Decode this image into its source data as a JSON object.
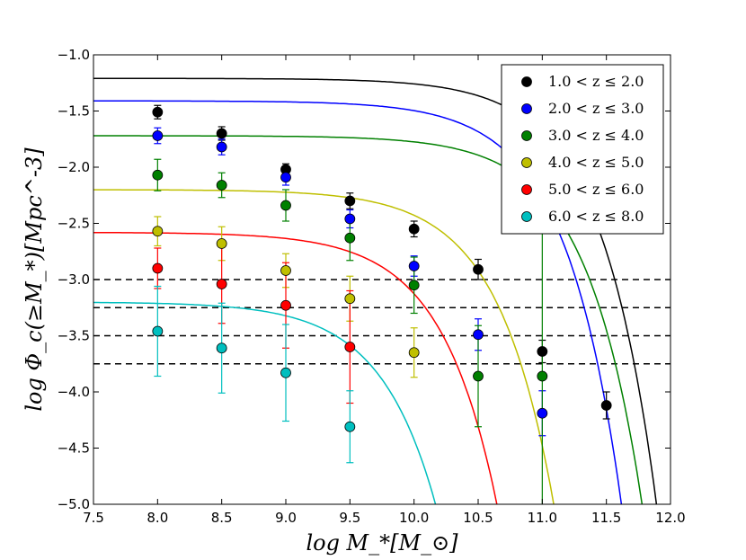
{
  "chart_data": {
    "type": "scatter",
    "title": "",
    "xlabel": "log M_*[M_⊙]",
    "ylabel": "log Φ_c(≥M_*)[Mpc^-3]",
    "xlim": [
      7.5,
      12.0
    ],
    "ylim": [
      -5.0,
      -1.0
    ],
    "x_ticks": [
      "7.5",
      "8.0",
      "8.5",
      "9.0",
      "9.5",
      "10.0",
      "10.5",
      "11.0",
      "11.5",
      "12.0"
    ],
    "y_ticks": [
      "−1.0",
      "−1.5",
      "−2.0",
      "−2.5",
      "−3.0",
      "−3.5",
      "−4.0",
      "−4.5",
      "−5.0"
    ],
    "legend_position": "top-right",
    "reference_lines": [
      -3.0,
      -3.25,
      -3.5,
      -3.75
    ],
    "series": [
      {
        "name": "1.0 < z ≤ 2.0",
        "color": "#000000",
        "x": [
          8.0,
          8.5,
          9.0,
          9.5,
          10.0,
          10.5,
          11.0,
          11.5
        ],
        "y": [
          -1.51,
          -1.7,
          -2.02,
          -2.3,
          -2.55,
          -2.91,
          -3.64,
          -4.12
        ],
        "err": [
          0.06,
          0.06,
          0.05,
          0.07,
          0.07,
          0.09,
          0.1,
          0.12
        ],
        "fit": {
          "phi_star": -1.21,
          "m_star": 10.95
        }
      },
      {
        "name": "2.0 < z ≤ 3.0",
        "color": "#0000ff",
        "x": [
          8.0,
          8.5,
          9.0,
          9.5,
          10.0,
          10.5,
          11.0
        ],
        "y": [
          -1.72,
          -1.82,
          -2.09,
          -2.46,
          -2.88,
          -3.49,
          -4.19
        ],
        "err": [
          0.07,
          0.07,
          0.07,
          0.08,
          0.09,
          0.14,
          0.2
        ],
        "fit": {
          "phi_star": -1.41,
          "m_star": 10.7
        }
      },
      {
        "name": "3.0 < z ≤ 4.0",
        "color": "#008000",
        "x": [
          8.0,
          8.5,
          9.0,
          9.5,
          10.0,
          10.5,
          11.0
        ],
        "y": [
          -2.07,
          -2.16,
          -2.34,
          -2.63,
          -3.05,
          -3.86,
          -3.86
        ],
        "err": [
          0.14,
          0.11,
          0.14,
          0.2,
          0.25,
          0.45,
          1.3
        ],
        "fit": {
          "phi_star": -1.72,
          "m_star": 10.9
        }
      },
      {
        "name": "4.0 < z ≤ 5.0",
        "color": "#bfbf00",
        "x": [
          8.0,
          8.5,
          9.0,
          9.5,
          10.0
        ],
        "y": [
          -2.57,
          -2.68,
          -2.92,
          -3.17,
          -3.65
        ],
        "err": [
          0.13,
          0.15,
          0.15,
          0.2,
          0.22
        ],
        "fit": {
          "phi_star": -2.2,
          "m_star": 10.28
        }
      },
      {
        "name": "5.0 < z ≤ 6.0",
        "color": "#ff0000",
        "x": [
          8.0,
          8.5,
          9.0,
          9.5
        ],
        "y": [
          -2.9,
          -3.04,
          -3.23,
          -3.6
        ],
        "err": [
          0.18,
          0.35,
          0.38,
          0.5
        ],
        "fit": {
          "phi_star": -2.58,
          "m_star": 9.9
        }
      },
      {
        "name": "6.0 < z ≤ 8.0",
        "color": "#00bfbf",
        "x": [
          8.0,
          8.5,
          9.0,
          9.5
        ],
        "y": [
          -3.46,
          -3.61,
          -3.83,
          -4.31
        ],
        "err": [
          0.4,
          0.4,
          0.43,
          0.32
        ],
        "fit": {
          "phi_star": -3.2,
          "m_star": 9.55
        }
      }
    ]
  }
}
